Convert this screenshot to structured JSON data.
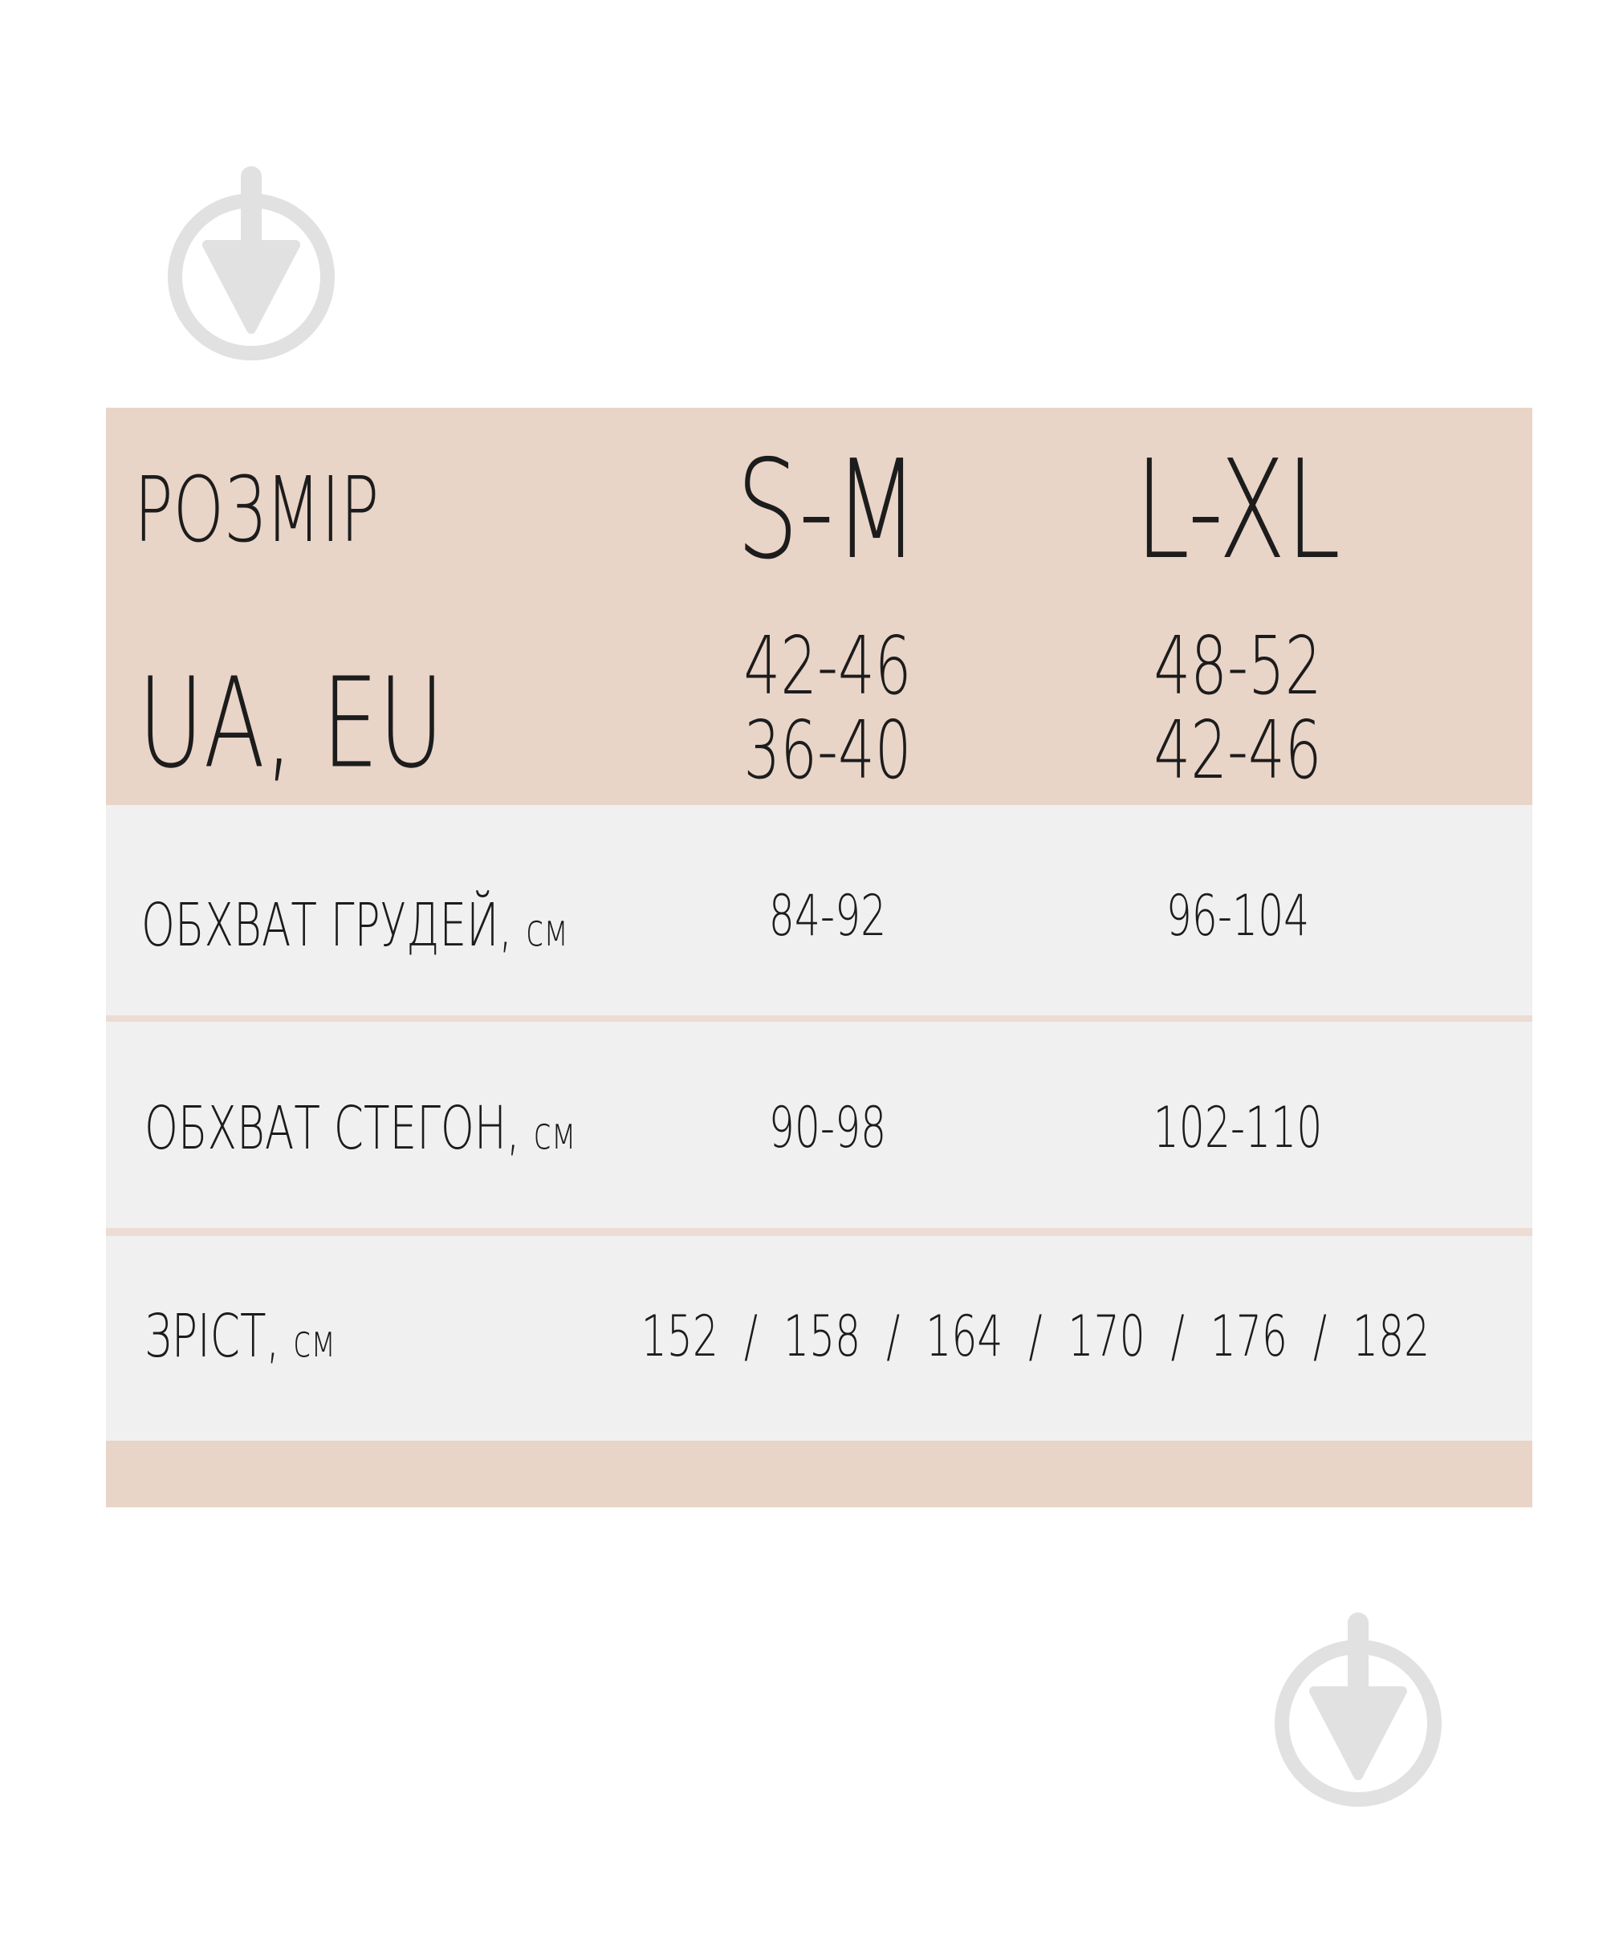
{
  "colors": {
    "header": "#e9d4c8",
    "row": "#f0f0f0",
    "separator": "#eddcd3",
    "text": "#1c1c1c",
    "icon": "#e1e1e1"
  },
  "icons": [
    "download-arrow-circle-icon",
    "download-arrow-circle-icon"
  ],
  "table": {
    "size_label": "РОЗМІР",
    "region_label": "UA, EU",
    "sizes": [
      {
        "name": "S-M",
        "ua": "42-46",
        "eu": "36-40"
      },
      {
        "name": "L-XL",
        "ua": "48-52",
        "eu": "42-46"
      }
    ],
    "rows": [
      {
        "label": "ОБХВАТ ГРУДЕЙ,",
        "unit": "см",
        "values": [
          "84-92",
          "96-104"
        ]
      },
      {
        "label": "ОБХВАТ СТЕГОН,",
        "unit": "см",
        "values": [
          "90-98",
          "102-110"
        ]
      }
    ],
    "height": {
      "label": "ЗРІСТ,",
      "unit": "см",
      "value": "152  /  158  /  164  /  170  /  176  /  182"
    }
  }
}
